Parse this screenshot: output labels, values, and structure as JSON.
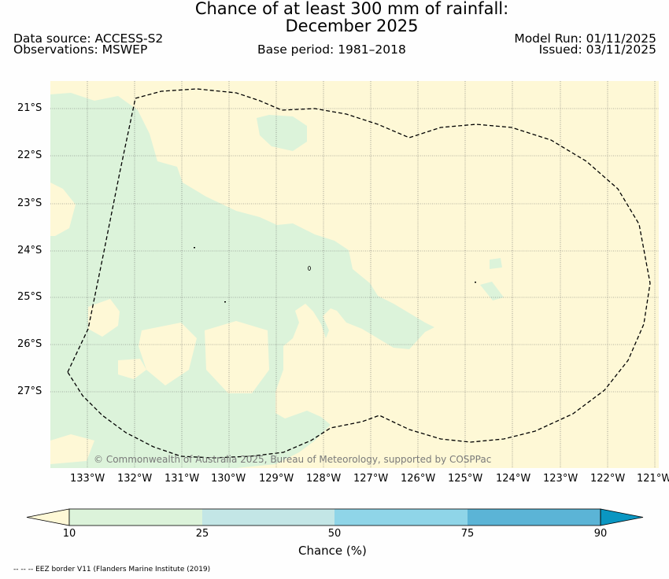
{
  "title": {
    "line1": "Chance of at least 300 mm of rainfall:",
    "line2": "December 2025"
  },
  "header": {
    "data_source": "Data source: ACCESS-S2",
    "observations": "Observations: MSWEP",
    "base_period": "Base period: 1981–2018",
    "model_run": "Model Run: 01/11/2025",
    "issued": "Issued: 03/11/2025"
  },
  "map": {
    "lat_labels": [
      "21°S",
      "22°S",
      "23°S",
      "24°S",
      "25°S",
      "26°S",
      "27°S"
    ],
    "lon_labels": [
      "133°W",
      "132°W",
      "131°W",
      "130°W",
      "129°W",
      "128°W",
      "127°W",
      "126°W",
      "125°W",
      "124°W",
      "123°W",
      "122°W",
      "121°W"
    ],
    "copyright": "© Commonwealth of Australia 2025, Bureau of Meteorology, supported by COSPPac",
    "colors": {
      "below_10": "#fef8d6",
      "band_10_25": "#dcf3da",
      "eez_border": "#000000"
    }
  },
  "colorbar": {
    "ticks": [
      "10",
      "25",
      "50",
      "75",
      "90"
    ],
    "label": "Chance (%)",
    "colors": [
      "#fef8d6",
      "#dcf3da",
      "#c3e6e6",
      "#8fd5e8",
      "#5bb4d6",
      "#0a96c2"
    ]
  },
  "footnote": "-- -- -- EEZ border V11 (Flanders Marine Institute (2019)"
}
